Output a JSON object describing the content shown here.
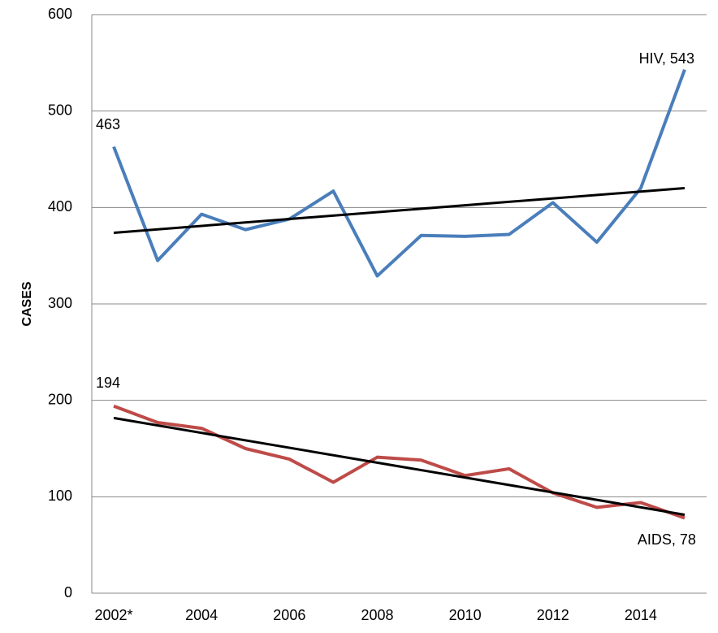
{
  "chart_data": {
    "type": "line",
    "y_label": "CASES",
    "categories": [
      "2002*",
      null,
      "2004",
      null,
      "2006",
      null,
      "2008",
      null,
      "2010",
      null,
      "2012",
      null,
      "2014",
      null
    ],
    "series": [
      {
        "name": "HIV",
        "color": "#4a7ebb",
        "values": [
          463,
          345,
          393,
          377,
          388,
          417,
          329,
          371,
          370,
          372,
          405,
          364,
          420,
          543
        ]
      },
      {
        "name": "AIDS",
        "color": "#be4b48",
        "values": [
          194,
          177,
          171,
          150,
          139,
          115,
          141,
          138,
          122,
          129,
          104,
          89,
          94,
          78
        ]
      }
    ],
    "trendline": true,
    "trendline_color": "#000000",
    "annotations": [
      "463",
      "HIV, 543",
      "194",
      "AIDS, 78"
    ],
    "ylim": [
      0,
      600
    ],
    "yticks": [
      0,
      100,
      200,
      300,
      400,
      500,
      600
    ],
    "grid": true
  }
}
